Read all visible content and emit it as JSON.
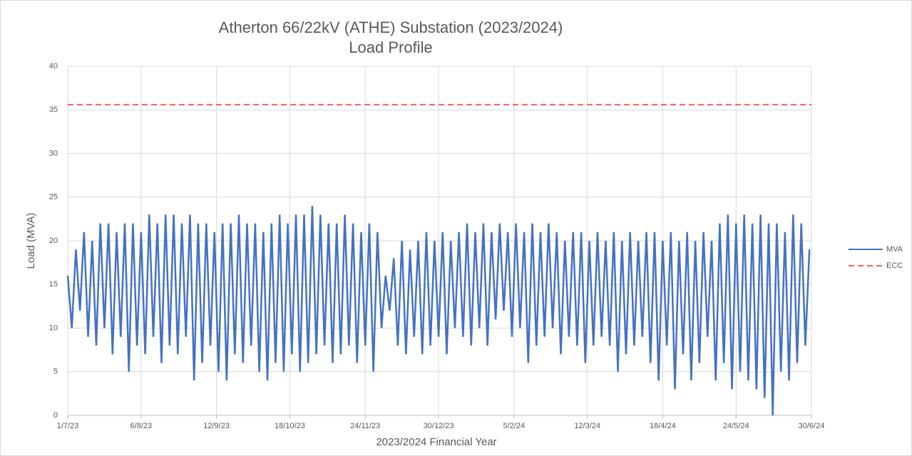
{
  "chart_data": {
    "type": "line",
    "title": [
      "Atherton 66/22kV (ATHE) Substation (2023/2024)",
      "Load Profile"
    ],
    "x_label": "2023/2024 Financial Year",
    "y_label": "Load (MVA)",
    "xlim": [
      0,
      365
    ],
    "xticks": [
      {
        "value": 0,
        "label": "1/7/23"
      },
      {
        "value": 36,
        "label": "6/8/23"
      },
      {
        "value": 73,
        "label": "12/9/23"
      },
      {
        "value": 109,
        "label": "18/10/23"
      },
      {
        "value": 146,
        "label": "24/11/23"
      },
      {
        "value": 182,
        "label": "30/12/23"
      },
      {
        "value": 219,
        "label": "5/2/24"
      },
      {
        "value": 255,
        "label": "12/3/24"
      },
      {
        "value": 292,
        "label": "18/4/24"
      },
      {
        "value": 328,
        "label": "24/5/24"
      },
      {
        "value": 365,
        "label": "30/6/24"
      }
    ],
    "ylim": [
      0,
      40
    ],
    "yticks": [
      0,
      5,
      10,
      15,
      20,
      25,
      30,
      35,
      40
    ],
    "grid": true,
    "legend": "right",
    "series": [
      {
        "name": "MVA",
        "color": "#4472c4",
        "dash": false,
        "x": [
          0,
          2,
          4,
          6,
          8,
          10,
          12,
          14,
          16,
          18,
          20,
          22,
          24,
          26,
          28,
          30,
          32,
          34,
          36,
          38,
          40,
          42,
          44,
          46,
          48,
          50,
          52,
          54,
          56,
          58,
          60,
          62,
          64,
          66,
          68,
          70,
          72,
          74,
          76,
          78,
          80,
          82,
          84,
          86,
          88,
          90,
          92,
          94,
          96,
          98,
          100,
          102,
          104,
          106,
          108,
          110,
          112,
          114,
          116,
          118,
          120,
          122,
          124,
          126,
          128,
          130,
          132,
          134,
          136,
          138,
          140,
          142,
          144,
          146,
          148,
          150,
          152,
          154,
          156,
          158,
          160,
          162,
          164,
          166,
          168,
          170,
          172,
          174,
          176,
          178,
          180,
          182,
          184,
          186,
          188,
          190,
          192,
          194,
          196,
          198,
          200,
          202,
          204,
          206,
          208,
          210,
          212,
          214,
          216,
          218,
          220,
          222,
          224,
          226,
          228,
          230,
          232,
          234,
          236,
          238,
          240,
          242,
          244,
          246,
          248,
          250,
          252,
          254,
          256,
          258,
          260,
          262,
          264,
          266,
          268,
          270,
          272,
          274,
          276,
          278,
          280,
          282,
          284,
          286,
          288,
          290,
          292,
          294,
          296,
          298,
          300,
          302,
          304,
          306,
          308,
          310,
          312,
          314,
          316,
          318,
          320,
          322,
          324,
          326,
          328,
          330,
          332,
          334,
          336,
          338,
          340,
          342,
          344,
          346,
          348,
          350,
          352,
          354,
          356,
          358,
          360,
          362,
          364
        ],
        "values": [
          16,
          10,
          19,
          12,
          21,
          9,
          20,
          8,
          22,
          10,
          22,
          7,
          21,
          9,
          22,
          5,
          22,
          8,
          21,
          7,
          23,
          9,
          22,
          6,
          23,
          8,
          23,
          7,
          22,
          9,
          23,
          4,
          22,
          6,
          22,
          8,
          21,
          5,
          22,
          4,
          22,
          7,
          23,
          6,
          22,
          8,
          22,
          5,
          21,
          4,
          22,
          6,
          23,
          5,
          22,
          7,
          23,
          5,
          23,
          6,
          24,
          7,
          23,
          8,
          22,
          6,
          22,
          7,
          23,
          8,
          22,
          6,
          21,
          8,
          22,
          5,
          21,
          10,
          16,
          12,
          18,
          8,
          20,
          7,
          19,
          9,
          20,
          7,
          21,
          8,
          20,
          9,
          21,
          7,
          20,
          10,
          21,
          9,
          22,
          8,
          21,
          10,
          22,
          8,
          21,
          11,
          22,
          12,
          21,
          9,
          22,
          10,
          21,
          6,
          22,
          8,
          21,
          9,
          22,
          10,
          21,
          7,
          20,
          9,
          21,
          8,
          21,
          6,
          20,
          8,
          21,
          9,
          20,
          8,
          21,
          5,
          20,
          7,
          21,
          8,
          20,
          9,
          21,
          6,
          21,
          4,
          20,
          8,
          21,
          3,
          20,
          7,
          21,
          4,
          20,
          6,
          21,
          9,
          20,
          4,
          22,
          6,
          23,
          3,
          22,
          5,
          23,
          4,
          22,
          3,
          23,
          2,
          22,
          0,
          22,
          5,
          21,
          4,
          23,
          6,
          22,
          8,
          19
        ]
      },
      {
        "name": "ECC",
        "color": "#ff5b5b",
        "dash": true,
        "x": [
          0,
          365
        ],
        "values": [
          35.6,
          35.6
        ]
      }
    ]
  }
}
